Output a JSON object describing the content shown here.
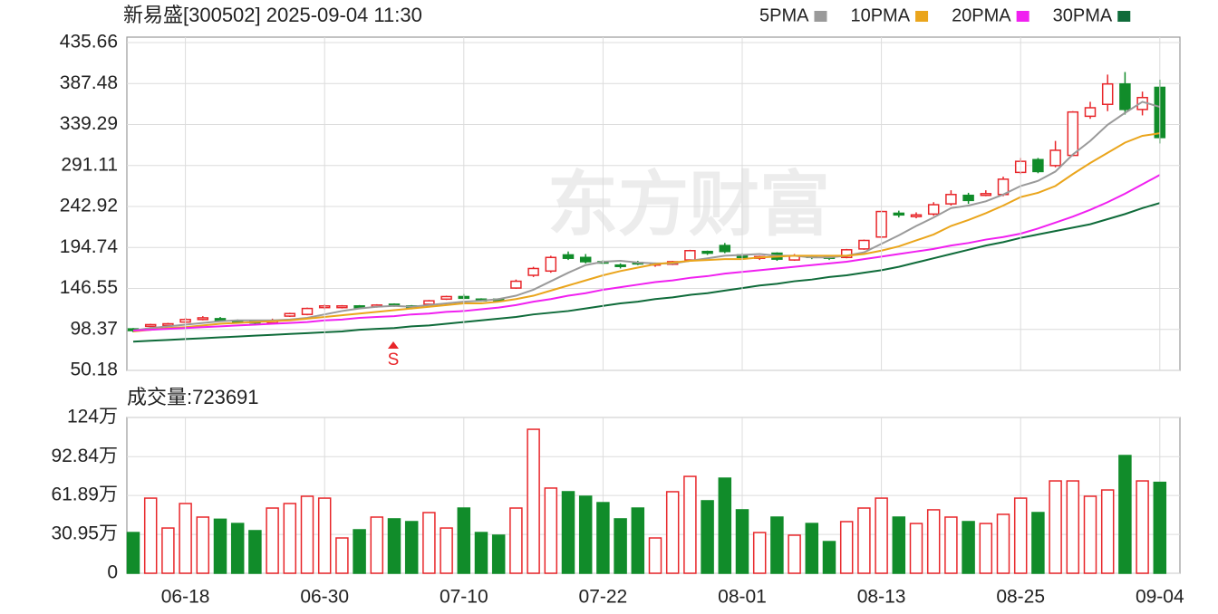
{
  "chart_data": [
    {
      "type": "candlestick",
      "title": "新易盛[300502] 2025-09-04 11:30",
      "watermark": "东方财富",
      "signal": "S",
      "up_color": "#e8262a",
      "down_color": "#118c2a",
      "open": [
        99,
        102,
        103,
        107,
        110,
        111,
        109,
        108,
        106,
        114,
        116,
        124,
        124,
        126,
        125,
        128,
        126,
        128,
        134,
        137,
        134,
        134,
        147,
        162,
        167,
        186,
        183,
        178,
        174,
        177,
        174,
        175,
        180,
        190,
        197,
        186,
        182,
        188,
        180,
        185,
        184,
        183,
        193,
        207,
        235,
        231,
        234,
        246,
        256,
        256,
        257,
        283,
        298,
        291,
        303,
        349,
        363,
        387,
        357,
        383
      ],
      "high": [
        100,
        105,
        106,
        112,
        114,
        113,
        110,
        109,
        111,
        118,
        124,
        128,
        127,
        127,
        128,
        129,
        127,
        133,
        138,
        140,
        135,
        135,
        157,
        172,
        185,
        190,
        187,
        180,
        176,
        179,
        177,
        179,
        192,
        191,
        200,
        188,
        185,
        189,
        187,
        186,
        185,
        193,
        204,
        238,
        238,
        236,
        248,
        262,
        259,
        262,
        278,
        300,
        300,
        320,
        355,
        366,
        398,
        401,
        378,
        392
      ],
      "low": [
        95,
        101,
        102,
        106,
        109,
        108,
        106,
        105,
        105,
        113,
        115,
        122,
        123,
        123,
        124,
        125,
        122,
        127,
        133,
        134,
        131,
        131,
        146,
        160,
        165,
        180,
        176,
        175,
        170,
        174,
        172,
        174,
        178,
        186,
        188,
        181,
        180,
        179,
        179,
        181,
        180,
        182,
        192,
        206,
        230,
        229,
        232,
        244,
        246,
        255,
        255,
        281,
        282,
        289,
        302,
        346,
        355,
        351,
        350,
        317
      ],
      "close": [
        97,
        104,
        105,
        110,
        112,
        109,
        107,
        106,
        109,
        117,
        123,
        126,
        126,
        124,
        127,
        126,
        124,
        132,
        137,
        135,
        132,
        133,
        155,
        170,
        183,
        182,
        178,
        177,
        173,
        176,
        176,
        178,
        191,
        188,
        190,
        183,
        184,
        181,
        185,
        183,
        182,
        192,
        203,
        237,
        233,
        233,
        245,
        257,
        250,
        258,
        275,
        296,
        284,
        309,
        354,
        359,
        387,
        357,
        371,
        324
      ],
      "series": [
        {
          "name": "5PMA",
          "color": "#9a9a9a",
          "values": [
            97,
            100,
            102,
            104,
            106,
            108,
            109,
            109,
            109,
            110,
            112,
            116,
            120,
            123,
            125,
            126,
            125,
            127,
            129,
            131,
            132,
            134,
            138,
            145,
            155,
            165,
            174,
            178,
            179,
            177,
            176,
            176,
            179,
            182,
            185,
            186,
            187,
            185,
            185,
            183,
            183,
            185,
            189,
            199,
            209,
            220,
            230,
            241,
            244,
            249,
            257,
            267,
            273,
            284,
            304,
            320,
            339,
            353,
            366,
            360
          ]
        },
        {
          "name": "10PMA",
          "color": "#eaa51c",
          "values": [
            96,
            98,
            100,
            101,
            103,
            105,
            106,
            107,
            108,
            109,
            111,
            113,
            115,
            117,
            119,
            121,
            123,
            125,
            127,
            129,
            129,
            131,
            134,
            138,
            144,
            150,
            156,
            162,
            167,
            171,
            175,
            177,
            179,
            180,
            181,
            181,
            183,
            184,
            185,
            185,
            185,
            185,
            187,
            191,
            196,
            203,
            210,
            220,
            227,
            235,
            244,
            254,
            259,
            267,
            281,
            294,
            306,
            318,
            326,
            329
          ]
        },
        {
          "name": "20PMA",
          "color": "#f020f0",
          "values": [
            97,
            98,
            99,
            100,
            101,
            102,
            103,
            104,
            105,
            106,
            107,
            109,
            110,
            112,
            113,
            114,
            116,
            117,
            119,
            120,
            122,
            124,
            127,
            131,
            134,
            138,
            141,
            145,
            148,
            151,
            154,
            156,
            159,
            161,
            164,
            166,
            168,
            170,
            172,
            174,
            176,
            178,
            181,
            184,
            187,
            190,
            193,
            197,
            200,
            204,
            207,
            211,
            217,
            224,
            231,
            239,
            248,
            258,
            269,
            280
          ]
        },
        {
          "name": "30PMA",
          "color": "#0f6b3a",
          "values": [
            84,
            85,
            86,
            87,
            88,
            89,
            90,
            91,
            92,
            93,
            94,
            95,
            96,
            98,
            99,
            100,
            102,
            103,
            105,
            107,
            109,
            111,
            113,
            116,
            118,
            120,
            123,
            126,
            129,
            131,
            134,
            136,
            139,
            141,
            144,
            147,
            150,
            152,
            155,
            157,
            160,
            162,
            165,
            168,
            172,
            177,
            182,
            187,
            192,
            197,
            201,
            206,
            210,
            214,
            218,
            222,
            228,
            234,
            241,
            247
          ]
        }
      ],
      "ylim": [
        50.18,
        435.66
      ],
      "yticks": [
        50.18,
        98.37,
        146.55,
        194.74,
        242.92,
        291.11,
        339.29,
        387.48,
        435.66
      ],
      "grid": true
    },
    {
      "type": "bar",
      "title": "成交量:723691",
      "categories": [
        null,
        null,
        null,
        "06-18",
        null,
        null,
        null,
        null,
        null,
        null,
        null,
        "06-30",
        null,
        null,
        null,
        null,
        null,
        null,
        null,
        "07-10",
        null,
        null,
        null,
        null,
        null,
        null,
        null,
        "07-22",
        null,
        null,
        null,
        null,
        null,
        null,
        null,
        "08-01",
        null,
        null,
        null,
        null,
        null,
        null,
        null,
        "08-13",
        null,
        null,
        null,
        null,
        null,
        null,
        null,
        "08-25",
        null,
        null,
        null,
        null,
        null,
        null,
        null,
        "09-04"
      ],
      "values": [
        32.4,
        59.8,
        36,
        55.5,
        44.7,
        43,
        39.6,
        33.9,
        51.9,
        55.5,
        61.3,
        59.8,
        28.1,
        34.6,
        44.7,
        43.3,
        41.1,
        48.3,
        36,
        51.9,
        32.4,
        30.3,
        51.9,
        114.6,
        67.8,
        64.9,
        61.3,
        56.2,
        43.3,
        51.9,
        28.1,
        64.9,
        77.1,
        57.7,
        75.7,
        50.5,
        32.4,
        44.7,
        30.3,
        39.6,
        25.2,
        41.1,
        51.9,
        59.8,
        44.7,
        39.6,
        50.5,
        44.7,
        41.1,
        39.6,
        46.9,
        59.8,
        48.3,
        73.5,
        73.5,
        61.3,
        66.3,
        93.7,
        73.5,
        72.37
      ],
      "ylim": [
        0,
        124
      ],
      "yticks": [
        0,
        {
          "value": 30.95,
          "label": "30.95万"
        },
        {
          "value": 61.89,
          "label": "61.89万"
        },
        {
          "value": 92.84,
          "label": "92.84万"
        },
        {
          "value": 124,
          "label": "124万"
        }
      ],
      "grid": true
    }
  ]
}
